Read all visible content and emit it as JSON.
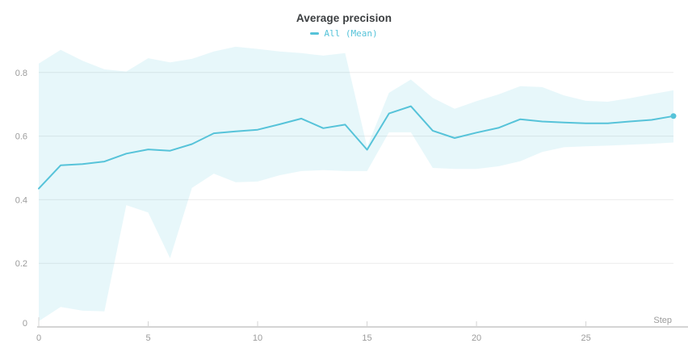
{
  "header": {
    "title": "Average precision",
    "legend_label": "All (Mean)"
  },
  "chart_data": {
    "type": "line",
    "title": "Average precision",
    "xlabel": "Step",
    "ylabel": "",
    "grid": "horizontal",
    "legend_position": "top-center",
    "legend": [
      "All (Mean)"
    ],
    "x": [
      0,
      1,
      2,
      3,
      4,
      5,
      6,
      7,
      8,
      9,
      10,
      11,
      12,
      13,
      14,
      15,
      16,
      17,
      18,
      19,
      20,
      21,
      22,
      23,
      24,
      25,
      26,
      27,
      28,
      29
    ],
    "series": [
      {
        "name": "All (Mean)",
        "values": [
          0.435,
          0.508,
          0.512,
          0.52,
          0.545,
          0.558,
          0.554,
          0.575,
          0.609,
          0.615,
          0.62,
          0.637,
          0.655,
          0.625,
          0.636,
          0.557,
          0.671,
          0.694,
          0.617,
          0.594,
          0.611,
          0.626,
          0.653,
          0.646,
          0.643,
          0.64,
          0.64,
          0.646,
          0.651,
          0.663
        ]
      }
    ],
    "band": {
      "name": "All (min/max range)",
      "upper": [
        0.828,
        0.871,
        0.837,
        0.81,
        0.803,
        0.845,
        0.832,
        0.843,
        0.866,
        0.881,
        0.874,
        0.866,
        0.861,
        0.853,
        0.861,
        0.566,
        0.736,
        0.778,
        0.72,
        0.686,
        0.71,
        0.731,
        0.757,
        0.754,
        0.728,
        0.711,
        0.708,
        0.719,
        0.732,
        0.744
      ],
      "lower": [
        0.018,
        0.063,
        0.051,
        0.049,
        0.383,
        0.36,
        0.216,
        0.437,
        0.482,
        0.455,
        0.457,
        0.477,
        0.49,
        0.493,
        0.49,
        0.49,
        0.612,
        0.612,
        0.5,
        0.497,
        0.497,
        0.505,
        0.521,
        0.55,
        0.565,
        0.568,
        0.57,
        0.573,
        0.576,
        0.58
      ]
    },
    "xlim": [
      0,
      29
    ],
    "ylim": [
      0,
      0.92
    ],
    "x_tick_values": [
      0,
      5,
      10,
      15,
      20,
      25
    ],
    "x_tick_labels": [
      "0",
      "5",
      "10",
      "15",
      "20",
      "25"
    ],
    "y_tick_values": [
      0,
      0.2,
      0.4,
      0.6,
      0.8
    ],
    "y_tick_labels": [
      "0",
      "0.2",
      "0.4",
      "0.6",
      "0.8"
    ],
    "last_point": {
      "step": 29,
      "value": 0.663
    },
    "colors": {
      "line": "#56c3d9",
      "band": "#56c3d9",
      "band_opacity": 0.14,
      "grid": "#ebebeb",
      "axis": "#d4d4d4",
      "tick_text": "#9b9b9b",
      "title_text": "#3b3e40",
      "background": "#ffffff"
    }
  }
}
